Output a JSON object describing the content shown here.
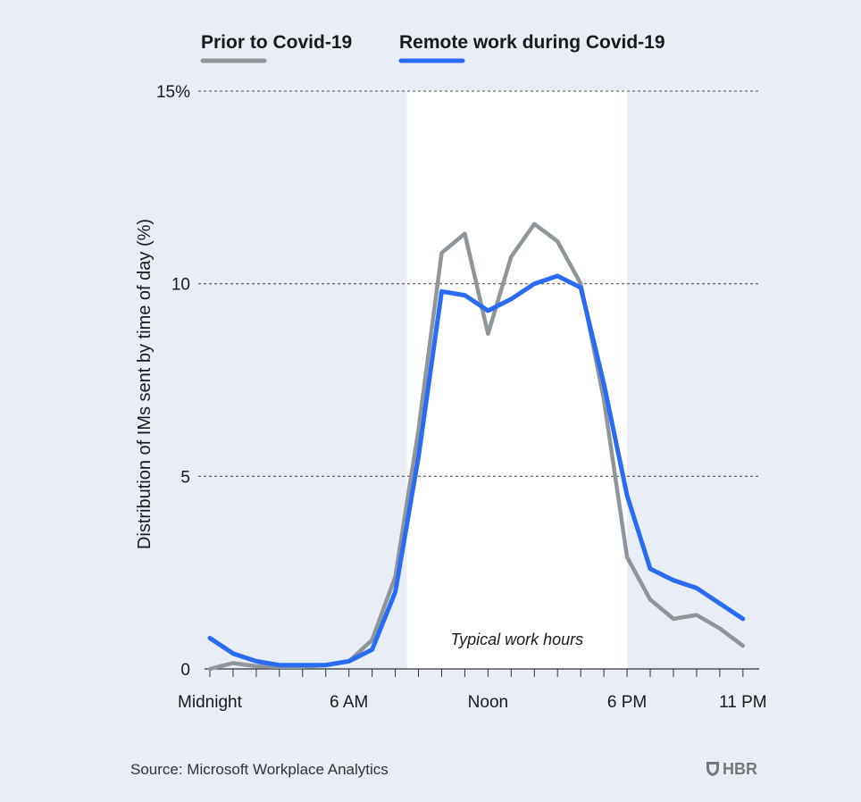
{
  "chart_data": {
    "type": "line",
    "ylabel": "Distribution of IMs sent by time of day (%)",
    "xlabel": "",
    "x_ticks": [
      {
        "x": 0,
        "label": "Midnight"
      },
      {
        "x": 6,
        "label": "6 AM"
      },
      {
        "x": 12,
        "label": "Noon"
      },
      {
        "x": 18,
        "label": "6 PM"
      },
      {
        "x": 23,
        "label": "11 PM"
      }
    ],
    "y_ticks": [
      {
        "y": 0,
        "label": "0"
      },
      {
        "y": 5,
        "label": "5"
      },
      {
        "y": 10,
        "label": "10"
      },
      {
        "y": 15,
        "label": "15%"
      }
    ],
    "xlim": [
      -0.5,
      23.7
    ],
    "ylim": [
      0,
      15
    ],
    "highlight": {
      "from": 8.5,
      "to": 18.0,
      "label": "Typical work hours",
      "color": "#ffffff"
    },
    "series": [
      {
        "name": "Prior to Covid-19",
        "color": "#8e969a",
        "x": [
          0,
          1,
          2,
          3,
          4,
          5,
          6,
          7,
          8,
          9,
          10,
          11,
          12,
          13,
          14,
          15,
          16,
          17,
          18,
          19,
          20,
          21,
          22,
          23
        ],
        "values": [
          0.0,
          0.15,
          0.07,
          0.05,
          0.05,
          0.1,
          0.2,
          0.75,
          2.4,
          6.2,
          10.8,
          11.3,
          8.7,
          10.7,
          11.55,
          11.1,
          10.0,
          7.0,
          2.9,
          1.8,
          1.3,
          1.4,
          1.05,
          0.6
        ]
      },
      {
        "name": "Remote work during Covid-19",
        "color": "#2a6bf3",
        "x": [
          0,
          1,
          2,
          3,
          4,
          5,
          6,
          7,
          8,
          9,
          10,
          11,
          12,
          13,
          14,
          15,
          16,
          17,
          18,
          19,
          20,
          21,
          22,
          23
        ],
        "values": [
          0.8,
          0.4,
          0.2,
          0.1,
          0.1,
          0.1,
          0.2,
          0.5,
          2.0,
          5.5,
          9.8,
          9.7,
          9.3,
          9.6,
          10.0,
          10.2,
          9.9,
          7.4,
          4.5,
          2.6,
          2.3,
          2.1,
          1.7,
          1.3
        ]
      }
    ],
    "grid": "dashed horizontal",
    "legend_position": "top"
  },
  "footer": {
    "source": "Source: Microsoft Workplace Analytics",
    "brand": "HBR"
  }
}
